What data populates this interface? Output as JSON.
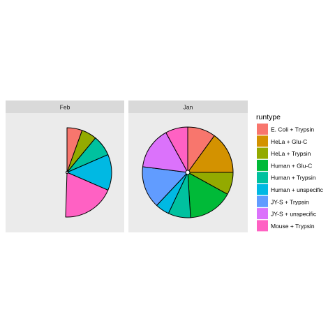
{
  "chart_data": {
    "type": "pie",
    "legend": {
      "title": "runtype",
      "position": "right",
      "entries": [
        {
          "label": "E. Coli + Trypsin",
          "color": "#F8766D"
        },
        {
          "label": "HeLa + Glu-C",
          "color": "#D39200"
        },
        {
          "label": "HeLa + Trypsin",
          "color": "#93AA00"
        },
        {
          "label": "Human + Glu-C",
          "color": "#00BA38"
        },
        {
          "label": "Human + Trypsin",
          "color": "#00C19F"
        },
        {
          "label": "Human + unspecific",
          "color": "#00B9E3"
        },
        {
          "label": "JY-S + Trypsin",
          "color": "#619CFF"
        },
        {
          "label": "JY-S + unspecific",
          "color": "#DB72FB"
        },
        {
          "label": "Mouse + Trypsin",
          "color": "#FF61C3"
        }
      ]
    },
    "facets": [
      {
        "name": "Feb",
        "slices": [
          {
            "label": "E. Coli + Trypsin",
            "fraction": 0.055
          },
          {
            "label": "HeLa + Trypsin",
            "fraction": 0.055
          },
          {
            "label": "Human + Trypsin",
            "fraction": 0.075
          },
          {
            "label": "Human + unspecific",
            "fraction": 0.13
          },
          {
            "label": "Mouse + Trypsin",
            "fraction": 0.19
          }
        ]
      },
      {
        "name": "Jan",
        "slices": [
          {
            "label": "E. Coli + Trypsin",
            "fraction": 0.1
          },
          {
            "label": "HeLa + Glu-C",
            "fraction": 0.15
          },
          {
            "label": "HeLa + Trypsin",
            "fraction": 0.08
          },
          {
            "label": "Human + Glu-C",
            "fraction": 0.16
          },
          {
            "label": "Human + Trypsin",
            "fraction": 0.08
          },
          {
            "label": "Human + unspecific",
            "fraction": 0.05
          },
          {
            "label": "JY-S + Trypsin",
            "fraction": 0.15
          },
          {
            "label": "JY-S + unspecific",
            "fraction": 0.15
          },
          {
            "label": "Mouse + Trypsin",
            "fraction": 0.08
          }
        ]
      }
    ]
  }
}
